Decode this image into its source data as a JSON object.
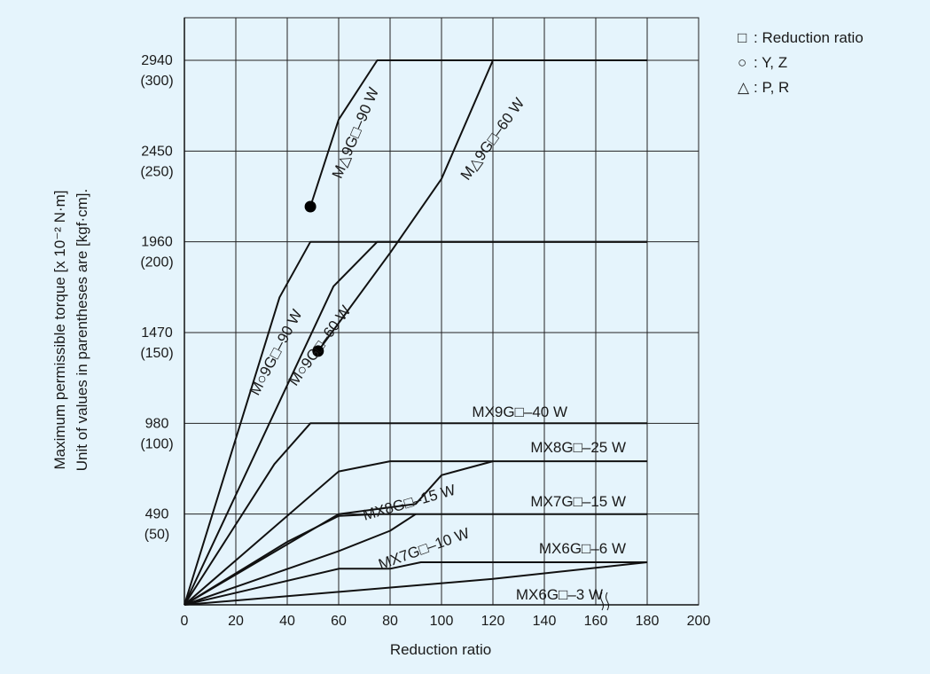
{
  "chart_data": {
    "type": "line",
    "xlabel": "Reduction ratio",
    "ylabel_line1": "Maximum permissible torque [x 10⁻² N·m]",
    "ylabel_line2": "Unit of values in parentheses are [kgf·cm].",
    "xlim": [
      0,
      200
    ],
    "ylim": [
      0,
      3200
    ],
    "x_ticks": [
      0,
      20,
      40,
      60,
      80,
      100,
      120,
      140,
      160,
      180,
      200
    ],
    "x_tick_labels": [
      "0",
      "20",
      "40",
      "60",
      "80",
      "100",
      "120",
      "140",
      "160",
      "180",
      "200"
    ],
    "y_ticks": [
      490,
      980,
      1470,
      1960,
      2450,
      2940
    ],
    "y_tick_labels": [
      {
        "main": "490",
        "sub": "(50)"
      },
      {
        "main": "980",
        "sub": "(100)"
      },
      {
        "main": "1470",
        "sub": "(150)"
      },
      {
        "main": "1960",
        "sub": "(200)"
      },
      {
        "main": "2450",
        "sub": "(250)"
      },
      {
        "main": "2940",
        "sub": "(300)"
      }
    ],
    "grid": true,
    "legend": [
      {
        "symbol": "□",
        "text": ": Reduction ratio"
      },
      {
        "symbol": "○",
        "text": ": Y, Z"
      },
      {
        "symbol": "△",
        "text": ": P, R"
      }
    ],
    "legend_position": "top-right",
    "series": [
      {
        "name": "M△9G□–90 W",
        "x": [
          49,
          60,
          75,
          180
        ],
        "y": [
          2150,
          2620,
          2940,
          2940
        ],
        "start_marker": true
      },
      {
        "name": "M△9G□–60 W",
        "x": [
          52,
          80,
          100,
          120,
          180
        ],
        "y": [
          1370,
          1900,
          2300,
          2940,
          2940
        ],
        "start_marker": true
      },
      {
        "name": "M○9G□–90 W",
        "x": [
          0,
          37,
          49,
          180
        ],
        "y": [
          0,
          1660,
          1960,
          1960
        ]
      },
      {
        "name": "M○9G□–60 W",
        "x": [
          0,
          58,
          75,
          180
        ],
        "y": [
          0,
          1720,
          1960,
          1960
        ]
      },
      {
        "name": "MX9G□–40 W",
        "x": [
          0,
          35,
          49,
          180
        ],
        "y": [
          0,
          760,
          980,
          980
        ]
      },
      {
        "name": "MX8G□–25 W",
        "x": [
          0,
          60,
          80,
          100,
          120,
          180
        ],
        "y": [
          0,
          720,
          775,
          775,
          775,
          775
        ]
      },
      {
        "name": "MX8G□–15 W",
        "x": [
          0,
          60,
          90,
          100,
          120
        ],
        "y": [
          0,
          490,
          545,
          700,
          775
        ]
      },
      {
        "name": "MX7G□–15 W",
        "x": [
          0,
          40,
          60,
          75,
          180
        ],
        "y": [
          0,
          340,
          480,
          490,
          490
        ]
      },
      {
        "name": "MX7G□–10 W",
        "x": [
          0,
          60,
          80,
          90
        ],
        "y": [
          0,
          290,
          400,
          490
        ]
      },
      {
        "name": "MX6G□–6 W",
        "x": [
          0,
          60,
          80,
          92,
          180
        ],
        "y": [
          0,
          195,
          195,
          230,
          230
        ]
      },
      {
        "name": "MX6G□–3 W",
        "x": [
          0,
          120,
          180
        ],
        "y": [
          0,
          140,
          230
        ]
      }
    ]
  }
}
